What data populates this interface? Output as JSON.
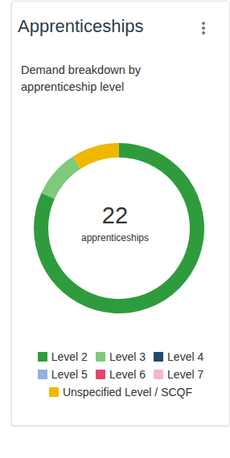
{
  "chart_data": {
    "type": "pie",
    "title": "Apprenticeships",
    "subtitle": "Demand breakdown by apprenticeship level",
    "categories": [
      "Level 2",
      "Level 3",
      "Level 4",
      "Level 5",
      "Level 6",
      "Level 7",
      "Unspecified Level / SCQF"
    ],
    "values": [
      18,
      2,
      0,
      0,
      0,
      0,
      2
    ],
    "colors": [
      "#2e9c3c",
      "#7fc97b",
      "#1f4a6b",
      "#8fb2e0",
      "#e6456b",
      "#f8b6cf",
      "#efb800"
    ],
    "total": 22,
    "total_label": "apprenticeships",
    "legend": "bottom"
  }
}
